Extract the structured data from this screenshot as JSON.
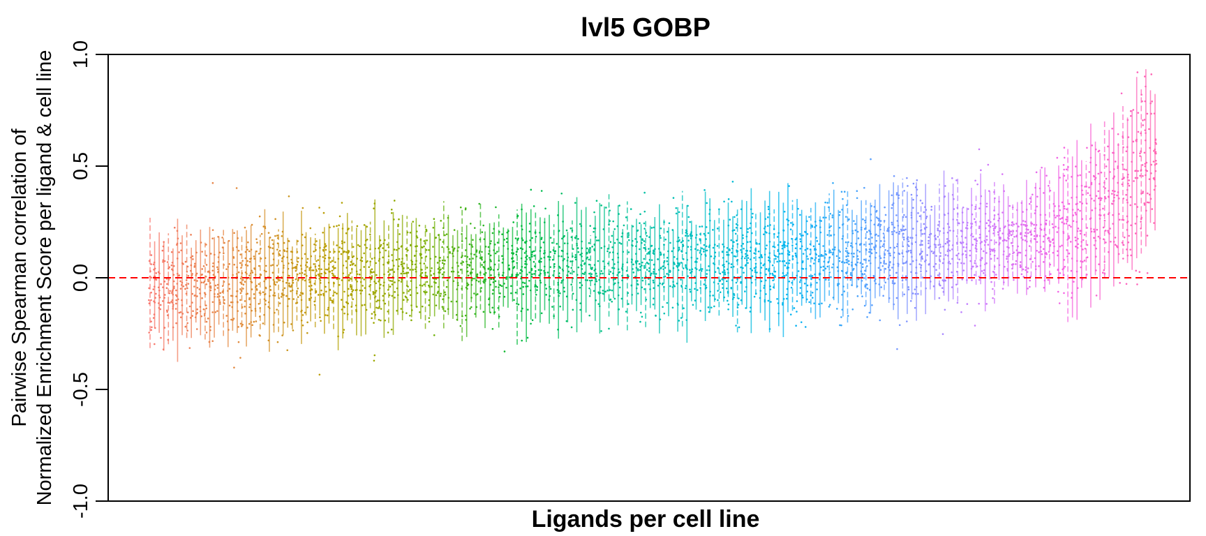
{
  "chart_data": {
    "type": "scatter",
    "title": "lvl5 GOBP",
    "xlabel": "Ligands per cell line",
    "ylabel": [
      "Pairwise Spearman correlation of",
      "Normalized Enrichment Score per ligand & cell line"
    ],
    "ylim": [
      -1.0,
      1.0
    ],
    "yticks": [
      1.0,
      0.5,
      0.0,
      -0.5,
      -1.0
    ],
    "ytick_labels": [
      "1.0",
      "0.5",
      "0.0",
      "-0.5",
      "-1.0"
    ],
    "reference_line": {
      "y": 0.0,
      "color": "#ff0000",
      "style": "dashed"
    },
    "x_categories_shown": false,
    "n_groups": 220,
    "approx_points_per_group": 18,
    "median_trend": [
      {
        "x": 0.0,
        "y": -0.05
      },
      {
        "x": 0.1,
        "y": -0.02
      },
      {
        "x": 0.2,
        "y": 0.02
      },
      {
        "x": 0.3,
        "y": 0.04
      },
      {
        "x": 0.4,
        "y": 0.05
      },
      {
        "x": 0.5,
        "y": 0.06
      },
      {
        "x": 0.6,
        "y": 0.08
      },
      {
        "x": 0.7,
        "y": 0.1
      },
      {
        "x": 0.75,
        "y": 0.13
      },
      {
        "x": 0.85,
        "y": 0.17
      },
      {
        "x": 0.92,
        "y": 0.22
      },
      {
        "x": 0.97,
        "y": 0.38
      },
      {
        "x": 1.0,
        "y": 0.55
      }
    ],
    "color_gradient": [
      "#f8766d",
      "#e08b3a",
      "#b79f00",
      "#7cae00",
      "#00ba38",
      "#00c08b",
      "#00bfc4",
      "#00b4f0",
      "#619cff",
      "#c77cff",
      "#f564e3",
      "#ff64b0"
    ]
  }
}
